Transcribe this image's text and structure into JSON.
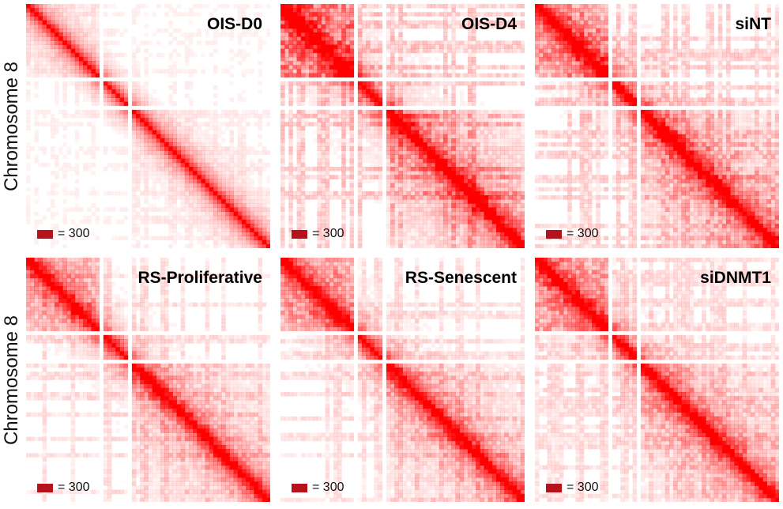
{
  "figure": {
    "row_labels": [
      "Chromosome 8",
      "Chromosome 8"
    ]
  },
  "chart_data": [
    {
      "type": "heatmap",
      "title": "OIS-D0",
      "legend": {
        "label": "= 300",
        "value": 300,
        "color": "#b5121b"
      },
      "color": "#ff0000",
      "style": {
        "diag": 0.95,
        "offdiag": 0.1,
        "block1": 0.12,
        "block2": 0.2,
        "stripes": 0.2
      }
    },
    {
      "type": "heatmap",
      "title": "OIS-D4",
      "legend": {
        "label": "= 300",
        "value": 300,
        "color": "#b5121b"
      },
      "color": "#ff0000",
      "style": {
        "diag": 1.0,
        "offdiag": 0.55,
        "block1": 0.7,
        "block2": 0.85,
        "stripes": 0.75
      }
    },
    {
      "type": "heatmap",
      "title": "siNT",
      "legend": {
        "label": "= 300",
        "value": 300,
        "color": "#b5121b"
      },
      "color": "#ff0000",
      "style": {
        "diag": 1.0,
        "offdiag": 0.45,
        "block1": 0.6,
        "block2": 0.75,
        "stripes": 0.65
      }
    },
    {
      "type": "heatmap",
      "title": "RS-Proliferative",
      "legend": {
        "label": "= 300",
        "value": 300,
        "color": "#b5121b"
      },
      "color": "#ff0000",
      "style": {
        "diag": 1.0,
        "offdiag": 0.35,
        "block1": 0.55,
        "block2": 0.6,
        "stripes": 0.45
      }
    },
    {
      "type": "heatmap",
      "title": "RS-Senescent",
      "legend": {
        "label": "= 300",
        "value": 300,
        "color": "#b5121b"
      },
      "color": "#ff0000",
      "style": {
        "diag": 1.0,
        "offdiag": 0.4,
        "block1": 0.6,
        "block2": 0.65,
        "stripes": 0.45
      }
    },
    {
      "type": "heatmap",
      "title": "siDNMT1",
      "legend": {
        "label": "= 300",
        "value": 300,
        "color": "#b5121b"
      },
      "color": "#ff0000",
      "style": {
        "diag": 1.0,
        "offdiag": 0.4,
        "block1": 0.55,
        "block2": 0.65,
        "stripes": 0.5
      }
    }
  ]
}
